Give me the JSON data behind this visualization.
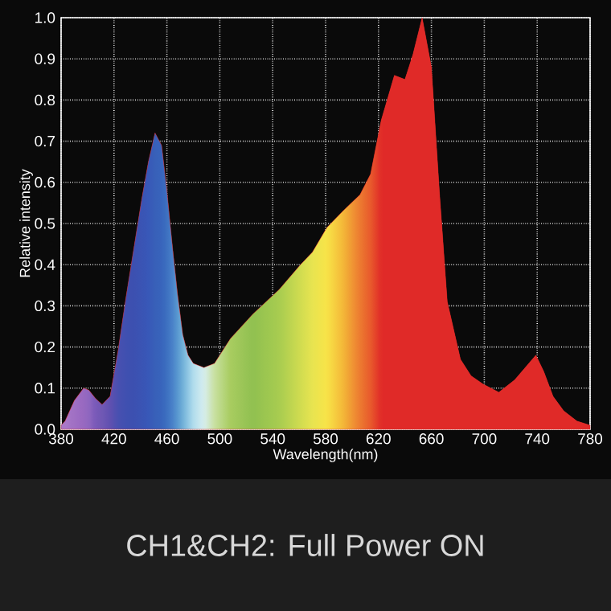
{
  "chart_data": {
    "type": "area",
    "title": "CH1&CH2: Full Power ON",
    "xlabel": "Wavelength(nm)",
    "ylabel": "Relative intensity",
    "x": [
      380,
      383,
      390,
      397,
      401,
      406,
      411,
      417,
      423,
      429,
      435,
      441,
      446,
      451,
      456,
      460,
      464,
      468,
      472,
      476,
      480,
      488,
      496,
      508,
      525,
      545,
      561,
      570,
      581,
      593,
      606,
      614,
      622,
      632,
      640,
      646,
      653,
      660,
      666,
      672,
      682,
      690,
      699,
      711,
      723,
      739,
      745,
      752,
      760,
      770,
      780
    ],
    "values": [
      0.01,
      0.02,
      0.07,
      0.1,
      0.095,
      0.075,
      0.06,
      0.08,
      0.19,
      0.32,
      0.44,
      0.56,
      0.65,
      0.72,
      0.69,
      0.58,
      0.45,
      0.33,
      0.23,
      0.18,
      0.16,
      0.15,
      0.16,
      0.22,
      0.28,
      0.34,
      0.4,
      0.43,
      0.49,
      0.53,
      0.57,
      0.62,
      0.75,
      0.86,
      0.85,
      0.91,
      1.0,
      0.88,
      0.58,
      0.31,
      0.17,
      0.13,
      0.11,
      0.09,
      0.12,
      0.18,
      0.14,
      0.08,
      0.045,
      0.02,
      0.01
    ],
    "colors": [
      "#a878c8",
      "#a878c8",
      "#a070c4",
      "#9868c0",
      "#9068c0",
      "#7858b8",
      "#7058b4",
      "#6050b0",
      "#4850b0",
      "#4050b0",
      "#3c50b0",
      "#3a54b4",
      "#3858b8",
      "#3860b8",
      "#3864bc",
      "#3c70c0",
      "#4880c8",
      "#5898d0",
      "#70b0d8",
      "#90c8e4",
      "#b0dcec",
      "#d8eef0",
      "#c8e0a0",
      "#a8cc60",
      "#90c050",
      "#a8cc50",
      "#d0dc50",
      "#e8e450",
      "#f8e448",
      "#f4b838",
      "#ec7a30",
      "#e85a2c",
      "#e02a28",
      "#e02a28",
      "#e02a28",
      "#e02a28",
      "#e02a28",
      "#e02a28",
      "#e02a28",
      "#e02a28",
      "#e02a28",
      "#e02a28",
      "#e02a28",
      "#e02a28",
      "#e02a28",
      "#e02a28",
      "#e02a28",
      "#e02a28",
      "#e02a28",
      "#e02a28",
      "#e02a28"
    ],
    "xlim": [
      380,
      780
    ],
    "xticks": [
      380,
      420,
      460,
      500,
      540,
      580,
      620,
      660,
      700,
      740,
      780
    ],
    "ylim": [
      0,
      1
    ],
    "yticks": [
      {
        "value": 0,
        "label": "0.0"
      },
      0.1,
      0.2,
      0.3,
      0.4,
      0.5,
      0.6,
      0.7,
      0.8,
      0.9,
      {
        "value": 1,
        "label": "1.0"
      }
    ],
    "grid": true
  }
}
